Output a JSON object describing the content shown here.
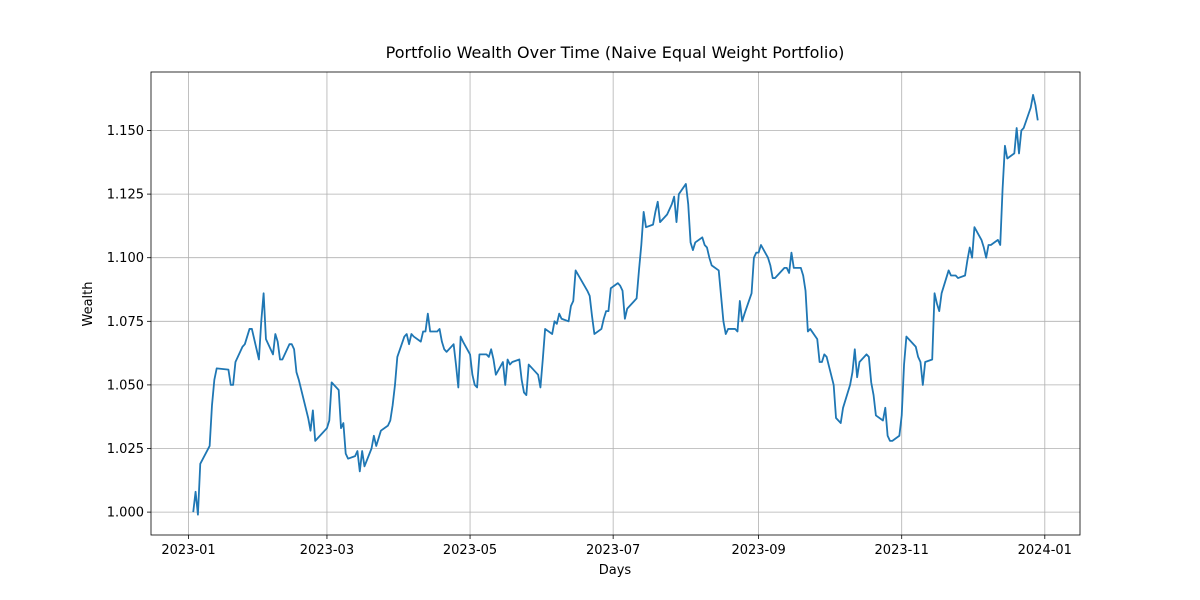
{
  "chart_data": {
    "type": "line",
    "title": "Portfolio Wealth Over Time (Naive Equal Weight Portfolio)",
    "x_label": "Days",
    "y_label": "Wealth",
    "x": [
      2,
      3,
      4,
      5,
      9,
      10,
      11,
      12,
      17,
      18,
      19,
      20,
      23,
      24,
      25,
      26,
      27,
      30,
      31,
      32,
      33,
      36,
      37,
      38,
      39,
      40,
      43,
      44,
      45,
      46,
      47,
      51,
      52,
      53,
      54,
      57,
      58,
      59,
      60,
      61,
      64,
      65,
      66,
      67,
      68,
      71,
      72,
      73,
      74,
      75,
      78,
      79,
      80,
      81,
      82,
      85,
      86,
      87,
      88,
      89,
      92,
      93,
      94,
      95,
      96,
      99,
      100,
      101,
      102,
      103,
      106,
      107,
      108,
      109,
      110,
      113,
      114,
      115,
      116,
      117,
      120,
      121,
      122,
      123,
      124,
      127,
      128,
      129,
      130,
      131,
      134,
      135,
      136,
      137,
      138,
      141,
      142,
      143,
      144,
      145,
      148,
      149,
      150,
      151,
      152,
      155,
      156,
      157,
      158,
      159,
      162,
      163,
      164,
      165,
      170,
      171,
      172,
      173,
      176,
      177,
      178,
      179,
      180,
      183,
      184,
      185,
      186,
      187,
      190,
      191,
      192,
      193,
      194,
      195,
      198,
      199,
      200,
      201,
      204,
      205,
      206,
      207,
      208,
      209,
      212,
      213,
      214,
      215,
      216,
      219,
      220,
      221,
      222,
      223,
      226,
      227,
      228,
      229,
      230,
      233,
      234,
      235,
      236,
      237,
      240,
      241,
      242,
      243,
      244,
      247,
      248,
      249,
      250,
      251,
      254,
      255,
      256,
      257,
      258,
      261,
      262,
      263,
      264,
      265,
      268,
      269,
      270,
      271,
      272,
      275,
      276,
      277,
      278,
      279,
      282,
      283,
      284,
      285,
      286,
      289,
      290,
      291,
      292,
      293,
      296,
      297,
      298,
      299,
      300,
      303,
      304,
      305,
      306,
      307,
      310,
      311,
      312,
      313,
      314,
      317,
      318,
      319,
      320,
      321,
      324,
      325,
      326,
      327,
      328,
      331,
      332,
      333,
      334,
      335,
      338,
      339,
      340,
      341,
      342,
      345,
      346,
      347,
      348,
      349,
      352,
      353,
      354,
      355,
      356,
      359,
      360,
      361,
      362
    ],
    "values": [
      1.0,
      1.008,
      0.999,
      1.019,
      1.026,
      1.042,
      1.052,
      1.0565,
      1.056,
      1.05,
      1.05,
      1.059,
      1.065,
      1.066,
      1.069,
      1.072,
      1.072,
      1.06,
      1.075,
      1.086,
      1.068,
      1.062,
      1.07,
      1.067,
      1.06,
      1.06,
      1.066,
      1.066,
      1.064,
      1.055,
      1.052,
      1.037,
      1.032,
      1.04,
      1.028,
      1.031,
      1.032,
      1.033,
      1.036,
      1.051,
      1.048,
      1.033,
      1.035,
      1.023,
      1.021,
      1.022,
      1.024,
      1.016,
      1.024,
      1.018,
      1.025,
      1.03,
      1.026,
      1.029,
      1.032,
      1.034,
      1.036,
      1.042,
      1.05,
      1.061,
      1.069,
      1.07,
      1.066,
      1.07,
      1.069,
      1.067,
      1.071,
      1.071,
      1.078,
      1.071,
      1.071,
      1.072,
      1.067,
      1.064,
      1.063,
      1.066,
      1.058,
      1.049,
      1.069,
      1.067,
      1.062,
      1.054,
      1.05,
      1.049,
      1.062,
      1.062,
      1.061,
      1.064,
      1.06,
      1.054,
      1.059,
      1.05,
      1.06,
      1.058,
      1.059,
      1.06,
      1.052,
      1.047,
      1.046,
      1.058,
      1.055,
      1.054,
      1.049,
      1.06,
      1.072,
      1.07,
      1.075,
      1.074,
      1.078,
      1.076,
      1.075,
      1.081,
      1.083,
      1.095,
      1.087,
      1.085,
      1.077,
      1.07,
      1.072,
      1.076,
      1.079,
      1.079,
      1.088,
      1.09,
      1.089,
      1.087,
      1.076,
      1.08,
      1.083,
      1.084,
      1.095,
      1.105,
      1.118,
      1.112,
      1.113,
      1.118,
      1.122,
      1.114,
      1.117,
      1.119,
      1.121,
      1.124,
      1.114,
      1.125,
      1.129,
      1.121,
      1.106,
      1.103,
      1.106,
      1.108,
      1.105,
      1.104,
      1.1,
      1.097,
      1.095,
      1.085,
      1.075,
      1.07,
      1.072,
      1.072,
      1.071,
      1.083,
      1.075,
      1.078,
      1.086,
      1.1,
      1.102,
      1.102,
      1.105,
      1.1,
      1.097,
      1.092,
      1.092,
      1.093,
      1.096,
      1.096,
      1.094,
      1.102,
      1.096,
      1.096,
      1.093,
      1.087,
      1.071,
      1.072,
      1.068,
      1.059,
      1.059,
      1.062,
      1.061,
      1.05,
      1.037,
      1.036,
      1.035,
      1.041,
      1.05,
      1.055,
      1.064,
      1.053,
      1.059,
      1.062,
      1.061,
      1.051,
      1.046,
      1.038,
      1.036,
      1.041,
      1.03,
      1.028,
      1.028,
      1.03,
      1.038,
      1.058,
      1.069,
      1.068,
      1.065,
      1.061,
      1.059,
      1.05,
      1.059,
      1.06,
      1.086,
      1.082,
      1.079,
      1.086,
      1.095,
      1.093,
      1.093,
      1.093,
      1.092,
      1.093,
      1.099,
      1.104,
      1.1,
      1.112,
      1.107,
      1.104,
      1.1,
      1.105,
      1.105,
      1.107,
      1.105,
      1.127,
      1.144,
      1.139,
      1.141,
      1.151,
      1.141,
      1.15,
      1.151,
      1.159,
      1.164,
      1.16,
      1.154
    ],
    "color": "#1f77b4",
    "xlim": [
      -16,
      380
    ],
    "xticks": [
      {
        "value": 0,
        "label": "2023-01"
      },
      {
        "value": 59,
        "label": "2023-03"
      },
      {
        "value": 120,
        "label": "2023-05"
      },
      {
        "value": 181,
        "label": "2023-07"
      },
      {
        "value": 243,
        "label": "2023-09"
      },
      {
        "value": 304,
        "label": "2023-11"
      },
      {
        "value": 365,
        "label": "2024-01"
      }
    ],
    "ylim": [
      0.991,
      1.173
    ],
    "yticks": [
      {
        "value": 1.0,
        "label": "1.000"
      },
      {
        "value": 1.025,
        "label": "1.025"
      },
      {
        "value": 1.05,
        "label": "1.050"
      },
      {
        "value": 1.075,
        "label": "1.075"
      },
      {
        "value": 1.1,
        "label": "1.100"
      },
      {
        "value": 1.125,
        "label": "1.125"
      },
      {
        "value": 1.15,
        "label": "1.150"
      }
    ],
    "grid": true
  }
}
